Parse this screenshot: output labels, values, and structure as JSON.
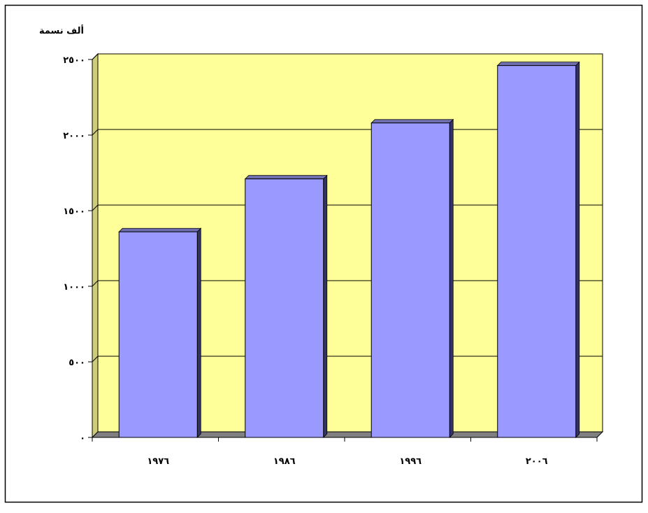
{
  "chart_data": {
    "type": "bar",
    "ylabel": "ألف نسمة",
    "categories": [
      "١٩٧٦",
      "١٩٨٦",
      "١٩٩٦",
      "٢٠٠٦"
    ],
    "x": [
      1976,
      1986,
      1996,
      2006
    ],
    "series": [
      {
        "values": [
          1360,
          1710,
          2080,
          2460
        ]
      }
    ],
    "ylim": [
      0,
      2500
    ],
    "yticks": [
      0,
      500,
      1000,
      1500,
      2000,
      2500
    ],
    "ytick_labels": [
      "٠",
      "٥٠٠",
      "١٠٠٠",
      "١٥٠٠",
      "٢٠٠٠",
      "٢٥٠٠"
    ],
    "grid": true,
    "legend": "none",
    "colors": {
      "plot_background": "#ffff99",
      "bar_face": "#9999ff",
      "bar_side": "#333366",
      "floor": "#808080",
      "gridline": "#000000"
    }
  }
}
